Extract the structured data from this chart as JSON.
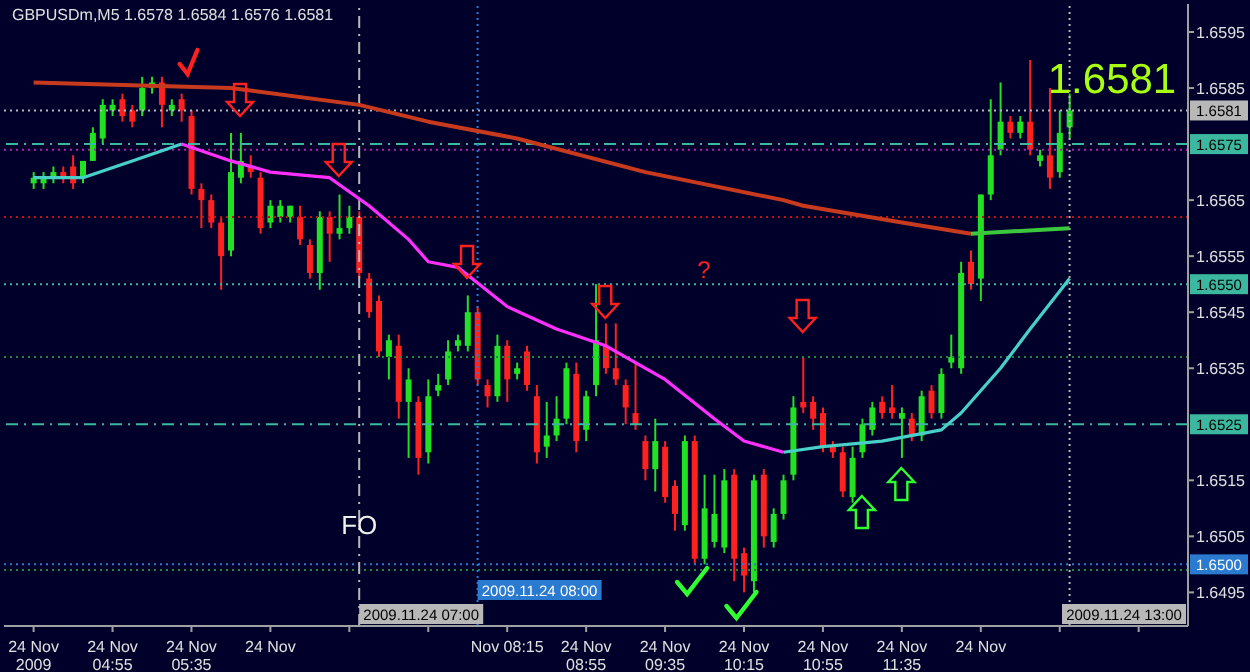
{
  "chart_data": {
    "type": "candlestick",
    "title": "GBPUSDm,M5 1.6578 1.6584 1.6576 1.6581",
    "x": [
      "2009-11-24T04:15",
      "2009-11-24T04:20",
      "2009-11-24T04:25",
      "2009-11-24T04:30",
      "2009-11-24T04:35",
      "2009-11-24T04:40",
      "2009-11-24T04:45",
      "2009-11-24T04:50",
      "2009-11-24T04:55",
      "2009-11-24T05:00",
      "2009-11-24T05:05",
      "2009-11-24T05:10",
      "2009-11-24T05:15",
      "2009-11-24T05:20",
      "2009-11-24T05:25",
      "2009-11-24T05:30",
      "2009-11-24T05:35",
      "2009-11-24T05:40",
      "2009-11-24T05:45",
      "2009-11-24T05:50",
      "2009-11-24T05:55",
      "2009-11-24T06:00",
      "2009-11-24T06:05",
      "2009-11-24T06:10",
      "2009-11-24T06:15",
      "2009-11-24T06:20",
      "2009-11-24T06:25",
      "2009-11-24T06:30",
      "2009-11-24T06:35",
      "2009-11-24T06:40",
      "2009-11-24T06:45",
      "2009-11-24T06:50",
      "2009-11-24T06:55",
      "2009-11-24T07:00",
      "2009-11-24T07:05",
      "2009-11-24T07:10",
      "2009-11-24T07:15",
      "2009-11-24T07:20",
      "2009-11-24T07:25",
      "2009-11-24T07:30",
      "2009-11-24T07:35",
      "2009-11-24T07:40",
      "2009-11-24T07:45",
      "2009-11-24T07:50",
      "2009-11-24T07:55",
      "2009-11-24T08:00",
      "2009-11-24T08:05",
      "2009-11-24T08:10",
      "2009-11-24T08:15",
      "2009-11-24T08:20",
      "2009-11-24T08:25",
      "2009-11-24T08:30",
      "2009-11-24T08:35",
      "2009-11-24T08:40",
      "2009-11-24T08:45",
      "2009-11-24T08:50",
      "2009-11-24T08:55",
      "2009-11-24T09:00",
      "2009-11-24T09:05",
      "2009-11-24T09:10",
      "2009-11-24T09:15",
      "2009-11-24T09:20",
      "2009-11-24T09:25",
      "2009-11-24T09:30",
      "2009-11-24T09:35",
      "2009-11-24T09:40",
      "2009-11-24T09:45",
      "2009-11-24T09:50",
      "2009-11-24T09:55",
      "2009-11-24T10:00",
      "2009-11-24T10:05",
      "2009-11-24T10:10",
      "2009-11-24T10:15",
      "2009-11-24T10:20",
      "2009-11-24T10:25",
      "2009-11-24T10:30",
      "2009-11-24T10:35",
      "2009-11-24T10:40",
      "2009-11-24T10:45",
      "2009-11-24T10:50",
      "2009-11-24T10:55",
      "2009-11-24T11:00",
      "2009-11-24T11:05",
      "2009-11-24T11:10",
      "2009-11-24T11:15",
      "2009-11-24T11:20",
      "2009-11-24T11:25",
      "2009-11-24T11:30",
      "2009-11-24T11:35",
      "2009-11-24T11:40",
      "2009-11-24T11:45",
      "2009-11-24T11:50",
      "2009-11-24T11:55",
      "2009-11-24T12:00",
      "2009-11-24T12:05",
      "2009-11-24T12:10",
      "2009-11-24T12:15",
      "2009-11-24T12:20",
      "2009-11-24T12:25",
      "2009-11-24T12:30",
      "2009-11-24T12:35",
      "2009-11-24T12:40",
      "2009-11-24T12:45",
      "2009-11-24T12:50",
      "2009-11-24T12:55",
      "2009-11-24T13:00"
    ],
    "ohlc": [
      [
        1.6568,
        1.657,
        1.6567,
        1.6569
      ],
      [
        1.6568,
        1.657,
        1.6567,
        1.6569
      ],
      [
        1.6569,
        1.6571,
        1.6568,
        1.657
      ],
      [
        1.657,
        1.6571,
        1.6568,
        1.6569
      ],
      [
        1.6571,
        1.6573,
        1.6567,
        1.6568
      ],
      [
        1.6569,
        1.6572,
        1.6568,
        1.6572
      ],
      [
        1.6572,
        1.6578,
        1.6572,
        1.6577
      ],
      [
        1.6576,
        1.6583,
        1.6575,
        1.6582
      ],
      [
        1.6581,
        1.6583,
        1.658,
        1.6582
      ],
      [
        1.6583,
        1.6584,
        1.6579,
        1.658
      ],
      [
        1.6581,
        1.6582,
        1.6578,
        1.6579
      ],
      [
        1.6581,
        1.6587,
        1.658,
        1.6585
      ],
      [
        1.6585,
        1.6587,
        1.6584,
        1.6586
      ],
      [
        1.6586,
        1.6587,
        1.6578,
        1.6582
      ],
      [
        1.6581,
        1.6583,
        1.658,
        1.6582
      ],
      [
        1.6583,
        1.6584,
        1.6579,
        1.6581
      ],
      [
        1.658,
        1.6581,
        1.6566,
        1.6567
      ],
      [
        1.6567,
        1.6568,
        1.656,
        1.6565
      ],
      [
        1.6565,
        1.6566,
        1.656,
        1.6561
      ],
      [
        1.6561,
        1.6562,
        1.6549,
        1.6555
      ],
      [
        1.6556,
        1.6577,
        1.6555,
        1.657
      ],
      [
        1.6569,
        1.6577,
        1.6568,
        1.6572
      ],
      [
        1.6571,
        1.6573,
        1.6569,
        1.657
      ],
      [
        1.6569,
        1.657,
        1.6559,
        1.656
      ],
      [
        1.6561,
        1.6565,
        1.656,
        1.6564
      ],
      [
        1.6562,
        1.6565,
        1.6561,
        1.6564
      ],
      [
        1.6562,
        1.6564,
        1.6561,
        1.6564
      ],
      [
        1.6562,
        1.6564,
        1.6557,
        1.6558
      ],
      [
        1.6557,
        1.6558,
        1.6551,
        1.6552
      ],
      [
        1.6552,
        1.6563,
        1.6549,
        1.6562
      ],
      [
        1.6562,
        1.6563,
        1.6554,
        1.6559
      ],
      [
        1.6559,
        1.6566,
        1.6558,
        1.656
      ],
      [
        1.656,
        1.6564,
        1.6559,
        1.6562
      ],
      [
        1.6562,
        1.6563,
        1.6551,
        1.6552
      ],
      [
        1.6551,
        1.6552,
        1.6544,
        1.6545
      ],
      [
        1.6547,
        1.6548,
        1.6537,
        1.6538
      ],
      [
        1.6537,
        1.6541,
        1.6533,
        1.654
      ],
      [
        1.6539,
        1.6541,
        1.6526,
        1.6529
      ],
      [
        1.6529,
        1.6535,
        1.6519,
        1.6533
      ],
      [
        1.6529,
        1.653,
        1.6516,
        1.6519
      ],
      [
        1.652,
        1.6533,
        1.6518,
        1.653
      ],
      [
        1.6531,
        1.6534,
        1.653,
        1.6532
      ],
      [
        1.6533,
        1.654,
        1.6532,
        1.6538
      ],
      [
        1.6539,
        1.6541,
        1.6538,
        1.654
      ],
      [
        1.6539,
        1.6548,
        1.6538,
        1.6545
      ],
      [
        1.6545,
        1.6546,
        1.6532,
        1.6533
      ],
      [
        1.6532,
        1.6533,
        1.6528,
        1.653
      ],
      [
        1.653,
        1.6541,
        1.6529,
        1.6539
      ],
      [
        1.6539,
        1.654,
        1.6529,
        1.6533
      ],
      [
        1.6534,
        1.6536,
        1.6533,
        1.6535
      ],
      [
        1.6538,
        1.6539,
        1.6531,
        1.6532
      ],
      [
        1.653,
        1.6532,
        1.6518,
        1.652
      ],
      [
        1.6521,
        1.6529,
        1.6519,
        1.6523
      ],
      [
        1.6523,
        1.653,
        1.6522,
        1.6526
      ],
      [
        1.6526,
        1.6536,
        1.6525,
        1.6535
      ],
      [
        1.6534,
        1.6536,
        1.652,
        1.6522
      ],
      [
        1.6524,
        1.6531,
        1.6522,
        1.653
      ],
      [
        1.6532,
        1.655,
        1.653,
        1.654
      ],
      [
        1.6539,
        1.6543,
        1.6534,
        1.6535
      ],
      [
        1.6535,
        1.6543,
        1.6532,
        1.6533
      ],
      [
        1.6532,
        1.6533,
        1.6525,
        1.6528
      ],
      [
        1.6527,
        1.6536,
        1.6524,
        1.6525
      ],
      [
        1.6522,
        1.6523,
        1.6515,
        1.6517
      ],
      [
        1.6517,
        1.6526,
        1.6513,
        1.6522
      ],
      [
        1.6521,
        1.6522,
        1.6511,
        1.6512
      ],
      [
        1.6514,
        1.6515,
        1.6506,
        1.6509
      ],
      [
        1.6507,
        1.6523,
        1.6506,
        1.6522
      ],
      [
        1.6522,
        1.6523,
        1.65,
        1.6501
      ],
      [
        1.6501,
        1.6516,
        1.65,
        1.651
      ],
      [
        1.6504,
        1.6516,
        1.6503,
        1.6509
      ],
      [
        1.6503,
        1.6517,
        1.6502,
        1.6515
      ],
      [
        1.6516,
        1.6517,
        1.6497,
        1.6501
      ],
      [
        1.6502,
        1.6503,
        1.6495,
        1.6498
      ],
      [
        1.6497,
        1.6516,
        1.6495,
        1.6515
      ],
      [
        1.6516,
        1.6517,
        1.6503,
        1.6505
      ],
      [
        1.6504,
        1.651,
        1.6503,
        1.6509
      ],
      [
        1.6509,
        1.6516,
        1.6508,
        1.6515
      ],
      [
        1.6516,
        1.653,
        1.6515,
        1.6528
      ],
      [
        1.6529,
        1.6537,
        1.6527,
        1.6528
      ],
      [
        1.6529,
        1.653,
        1.6524,
        1.6526
      ],
      [
        1.6527,
        1.6528,
        1.652,
        1.6521
      ],
      [
        1.6521,
        1.6522,
        1.6519,
        1.652
      ],
      [
        1.652,
        1.6521,
        1.6512,
        1.6513
      ],
      [
        1.6512,
        1.6521,
        1.6511,
        1.6519
      ],
      [
        1.652,
        1.6526,
        1.6519,
        1.6525
      ],
      [
        1.6524,
        1.6529,
        1.6523,
        1.6528
      ],
      [
        1.6529,
        1.653,
        1.6526,
        1.6527
      ],
      [
        1.6528,
        1.6532,
        1.6526,
        1.6527
      ],
      [
        1.6526,
        1.6528,
        1.6519,
        1.6527
      ],
      [
        1.6526,
        1.6527,
        1.6522,
        1.6523
      ],
      [
        1.6523,
        1.6531,
        1.6522,
        1.653
      ],
      [
        1.6531,
        1.6532,
        1.6526,
        1.6527
      ],
      [
        1.6527,
        1.6535,
        1.6526,
        1.6534
      ],
      [
        1.6536,
        1.6541,
        1.6535,
        1.6537
      ],
      [
        1.6535,
        1.6554,
        1.6534,
        1.6552
      ],
      [
        1.6554,
        1.6556,
        1.6549,
        1.655
      ],
      [
        1.6551,
        1.6566,
        1.6547,
        1.6566
      ],
      [
        1.6566,
        1.6583,
        1.6565,
        1.6573
      ],
      [
        1.6574,
        1.6586,
        1.6573,
        1.6579
      ],
      [
        1.6579,
        1.658,
        1.6576,
        1.6577
      ],
      [
        1.6577,
        1.658,
        1.6576,
        1.6579
      ],
      [
        1.6579,
        1.659,
        1.6573,
        1.6574
      ],
      [
        1.6572,
        1.6574,
        1.6571,
        1.6573
      ],
      [
        1.6573,
        1.6585,
        1.6567,
        1.6569
      ],
      [
        1.657,
        1.6581,
        1.6569,
        1.6577
      ],
      [
        1.6578,
        1.6584,
        1.6576,
        1.6581
      ]
    ],
    "series": [
      {
        "type": "line",
        "color": "#c83a1e",
        "x": [
          "2009-11-24T04:15",
          "2009-11-24T05:55",
          "2009-11-24T07:00",
          "2009-11-24T07:35",
          "2009-11-24T08:20",
          "2009-11-24T09:25",
          "2009-11-24T10:35",
          "2009-11-24T10:45",
          "2009-11-24T11:35",
          "2009-11-24T12:10"
        ],
        "values": [
          1.6586,
          1.6585,
          1.6582,
          1.6579,
          1.6576,
          1.657,
          1.6565,
          1.6564,
          1.6561,
          1.6559
        ]
      },
      {
        "type": "line",
        "color": "#3cc83c",
        "x": [
          "2009-11-24T12:10",
          "2009-11-24T13:00"
        ],
        "values": [
          1.6559,
          1.656
        ]
      },
      {
        "type": "line",
        "color": "#48d0c8",
        "x": [
          "2009-11-24T04:15",
          "2009-11-24T04:40",
          "2009-11-24T05:05",
          "2009-11-24T05:30"
        ],
        "values": [
          1.6569,
          1.6569,
          1.6572,
          1.6575
        ]
      },
      {
        "type": "line",
        "color": "#ff30ff",
        "x": [
          "2009-11-24T05:30",
          "2009-11-24T05:55",
          "2009-11-24T06:15",
          "2009-11-24T06:45",
          "2009-11-24T07:05",
          "2009-11-24T07:25",
          "2009-11-24T07:35",
          "2009-11-24T07:50",
          "2009-11-24T08:15",
          "2009-11-24T08:40",
          "2009-11-24T09:05",
          "2009-11-24T09:35",
          "2009-11-24T10:00",
          "2009-11-24T10:15",
          "2009-11-24T10:35"
        ],
        "values": [
          1.6575,
          1.6572,
          1.657,
          1.6569,
          1.6564,
          1.6558,
          1.6554,
          1.6553,
          1.6546,
          1.6542,
          1.6539,
          1.6533,
          1.6526,
          1.6522,
          1.652
        ]
      },
      {
        "type": "line",
        "color": "#48d0c8",
        "x": [
          "2009-11-24T10:35",
          "2009-11-24T10:55",
          "2009-11-24T11:25",
          "2009-11-24T11:55",
          "2009-11-24T12:05",
          "2009-11-24T12:25",
          "2009-11-24T12:40",
          "2009-11-24T13:00"
        ],
        "values": [
          1.652,
          1.6521,
          1.6522,
          1.6524,
          1.6527,
          1.6535,
          1.6542,
          1.6551
        ]
      }
    ],
    "xlim": [
      "2009-11-24T04:00",
      "2009-11-24T14:00"
    ],
    "xticks": [
      {
        "value": "2009-11-24T04:15",
        "label": "24 Nov 2009"
      },
      {
        "value": "2009-11-24T04:55",
        "label": "24 Nov 04:55"
      },
      {
        "value": "2009-11-24T05:35",
        "label": "24 Nov 05:35"
      },
      {
        "value": "2009-11-24T06:15",
        "label": "24 Nov"
      },
      {
        "value": "2009-11-24T06:55",
        "label": null
      },
      {
        "value": "2009-11-24T07:35",
        "label": null
      },
      {
        "value": "2009-11-24T08:15",
        "label": "Nov 08:15"
      },
      {
        "value": "2009-11-24T08:55",
        "label": "24 Nov 08:55"
      },
      {
        "value": "2009-11-24T09:35",
        "label": "24 Nov 09:35"
      },
      {
        "value": "2009-11-24T10:15",
        "label": "24 Nov 10:15"
      },
      {
        "value": "2009-11-24T10:55",
        "label": "24 Nov 10:55"
      },
      {
        "value": "2009-11-24T11:35",
        "label": "24 Nov 11:35"
      },
      {
        "value": "2009-11-24T12:15",
        "label": "24 Nov"
      },
      {
        "value": "2009-11-24T12:55",
        "label": null
      },
      {
        "value": "2009-11-24T13:35",
        "label": null
      }
    ],
    "ylim": [
      1.6489,
      1.66
    ],
    "yticks": [
      1.6495,
      1.6505,
      1.6515,
      1.6535,
      1.6545,
      1.6555,
      1.6565,
      1.6585,
      1.6595
    ],
    "ref_lines": [
      {
        "axis": "y",
        "value": 1.6581,
        "label": "1.6581",
        "color": "#b8b8b8",
        "line_style": "dotted"
      },
      {
        "axis": "y",
        "value": 1.6575,
        "label": "1.6575",
        "color": "#3cb8a0",
        "line_style": "dashed"
      },
      {
        "axis": "y",
        "value": 1.6574,
        "label": null,
        "color": "#b020b0",
        "line_style": "dotted"
      },
      {
        "axis": "y",
        "value": 1.6562,
        "label": null,
        "color": "#c01010",
        "line_style": "dotted"
      },
      {
        "axis": "y",
        "value": 1.655,
        "label": "1.6550",
        "color": "#3cb8a0",
        "line_style": "dotted"
      },
      {
        "axis": "y",
        "value": 1.6537,
        "label": null,
        "color": "#1e8a3c",
        "line_style": "dotted"
      },
      {
        "axis": "y",
        "value": 1.6525,
        "label": "1.6525",
        "color": "#3cb8a0",
        "line_style": "dashed"
      },
      {
        "axis": "y",
        "value": 1.65,
        "label": "1.6500",
        "color": "#2a7ad0",
        "line_style": "dotted"
      },
      {
        "axis": "y",
        "value": 1.6499,
        "label": null,
        "color": "#1e8a3c",
        "line_style": "dotted"
      },
      {
        "axis": "x",
        "value": "2009-11-24T07:00",
        "label": "2009.11.24 07:00",
        "color": "#b8b8b8",
        "line_style": "dashed"
      },
      {
        "axis": "x",
        "value": "2009-11-24T08:00",
        "label": "2009.11.24 08:00",
        "color": "#2a7ad0",
        "line_style": "dotted"
      },
      {
        "axis": "x",
        "value": "2009-11-24T13:00",
        "label": "2009.11.24 13:00",
        "color": "#b8b8b8",
        "line_style": "dotted"
      }
    ],
    "annotations": [
      {
        "text": "FO",
        "x": "2009-11-24T07:00",
        "y": 1.6507
      },
      "?",
      "1.6581"
    ]
  }
}
